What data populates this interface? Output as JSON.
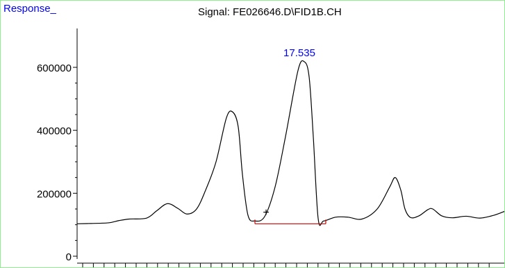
{
  "chart_data": {
    "type": "line",
    "title": "Signal: FE026646.D\\FID1B.CH",
    "ylabel": "Response_",
    "ylim": [
      0,
      640000
    ],
    "yticks": [
      {
        "value": 0,
        "label": "0"
      },
      {
        "value": 200000,
        "label": "200000"
      },
      {
        "value": 400000,
        "label": "400000"
      },
      {
        "value": 600000,
        "label": "600000"
      }
    ],
    "grid": false,
    "series": [
      {
        "color": "#000000",
        "points": [
          [
            0,
            103000
          ],
          [
            20,
            104000
          ],
          [
            45,
            106000
          ],
          [
            60,
            113000
          ],
          [
            75,
            118000
          ],
          [
            100,
            121000
          ],
          [
            115,
            145000
          ],
          [
            130,
            167000
          ],
          [
            145,
            152000
          ],
          [
            158,
            134000
          ],
          [
            172,
            150000
          ],
          [
            185,
            210000
          ],
          [
            200,
            300000
          ],
          [
            215,
            440000
          ],
          [
            224,
            458000
          ],
          [
            232,
            410000
          ],
          [
            238,
            260000
          ],
          [
            246,
            130000
          ],
          [
            256,
            112000
          ],
          [
            270,
            126000
          ],
          [
            285,
            220000
          ],
          [
            300,
            380000
          ],
          [
            318,
            590000
          ],
          [
            327,
            618000
          ],
          [
            334,
            570000
          ],
          [
            340,
            380000
          ],
          [
            347,
            120000
          ],
          [
            355,
            112000
          ],
          [
            372,
            124000
          ],
          [
            390,
            124000
          ],
          [
            410,
            118000
          ],
          [
            432,
            150000
          ],
          [
            450,
            220000
          ],
          [
            458,
            250000
          ],
          [
            466,
            210000
          ],
          [
            472,
            150000
          ],
          [
            480,
            123000
          ],
          [
            492,
            128000
          ],
          [
            505,
            148000
          ],
          [
            512,
            150000
          ],
          [
            525,
            128000
          ],
          [
            540,
            122000
          ],
          [
            560,
            127000
          ],
          [
            580,
            121000
          ],
          [
            600,
            130000
          ],
          [
            616,
            143000
          ]
        ]
      }
    ],
    "baseline": {
      "color": "#cc0000",
      "x": [
        256,
        358
      ],
      "y": 103000
    },
    "peak_label": {
      "text": "17.535",
      "x": 327,
      "y": 618000,
      "color": "#0000ff"
    },
    "marker": {
      "symbol": "+",
      "x": 272,
      "y": 132000
    }
  }
}
